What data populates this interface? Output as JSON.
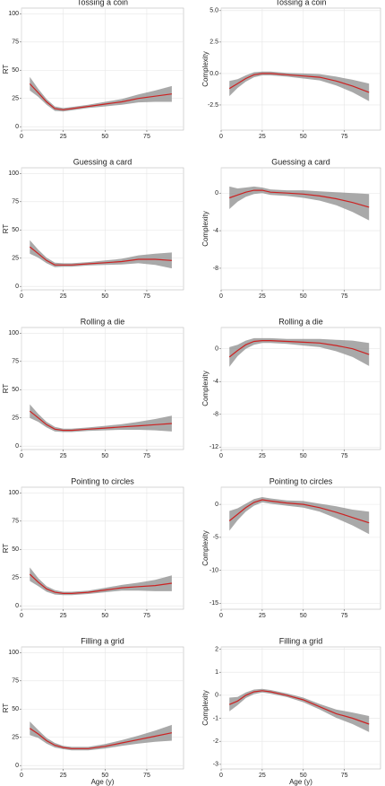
{
  "chart_data": [
    {
      "type": "line",
      "title": "Tossing a coin",
      "ylabel": "RT",
      "x": [
        5,
        10,
        15,
        20,
        25,
        30,
        40,
        50,
        60,
        70,
        80,
        90
      ],
      "xlim": [
        0,
        97
      ],
      "xticks": [
        0,
        25,
        50,
        75
      ],
      "ylim": [
        -3,
        105
      ],
      "yticks": [
        0,
        25,
        50,
        75,
        100
      ],
      "grid": true,
      "series": [
        {
          "color": "#cc2222",
          "band_color": "#8c8c8c",
          "values": [
            38,
            30,
            22,
            16,
            15,
            16,
            18,
            20,
            22,
            25,
            27,
            29
          ],
          "lower": [
            32,
            26.5,
            19.5,
            14,
            13.5,
            14.5,
            16.5,
            18,
            19.5,
            21.5,
            22,
            22
          ],
          "upper": [
            44,
            33.5,
            24.5,
            18,
            16.5,
            17.5,
            19.5,
            22,
            24.5,
            28.5,
            32,
            36
          ]
        }
      ]
    },
    {
      "type": "line",
      "title": "Tossing a coin",
      "ylabel": "Complexity",
      "x": [
        5,
        10,
        15,
        20,
        25,
        30,
        40,
        50,
        60,
        70,
        80,
        90
      ],
      "xlim": [
        0,
        97
      ],
      "xticks": [
        0,
        25,
        50,
        75
      ],
      "ylim": [
        -4.5,
        5.2
      ],
      "yticks": [
        -2.5,
        {
          "value": 0,
          "label": "0.0"
        },
        2.5,
        {
          "value": 5,
          "label": "5.0"
        }
      ],
      "grid": true,
      "series": [
        {
          "color": "#cc2222",
          "band_color": "#8c8c8c",
          "values": [
            -1.2,
            -0.8,
            -0.4,
            -0.1,
            0,
            0,
            -0.1,
            -0.2,
            -0.3,
            -0.6,
            -1.0,
            -1.5
          ],
          "lower": [
            -1.8,
            -1.15,
            -0.65,
            -0.3,
            -0.15,
            -0.15,
            -0.25,
            -0.4,
            -0.55,
            -0.95,
            -1.5,
            -2.2
          ],
          "upper": [
            -0.6,
            -0.45,
            -0.15,
            0.1,
            0.15,
            0.15,
            0.05,
            0,
            -0.05,
            -0.25,
            -0.5,
            -0.8
          ]
        }
      ]
    },
    {
      "type": "line",
      "title": "Guessing a card",
      "ylabel": "RT",
      "x": [
        5,
        10,
        15,
        20,
        25,
        30,
        40,
        50,
        60,
        70,
        80,
        90
      ],
      "xlim": [
        0,
        97
      ],
      "xticks": [
        0,
        25,
        50,
        75
      ],
      "ylim": [
        -3,
        105
      ],
      "yticks": [
        0,
        25,
        50,
        75,
        100
      ],
      "grid": true,
      "series": [
        {
          "color": "#cc2222",
          "band_color": "#8c8c8c",
          "values": [
            35,
            29,
            23,
            19,
            19,
            19,
            20,
            21,
            22,
            24,
            24,
            23
          ],
          "lower": [
            29,
            25.5,
            20.5,
            17,
            17.5,
            17.5,
            18.5,
            19,
            19.5,
            20.5,
            19,
            16
          ],
          "upper": [
            41,
            32.5,
            25.5,
            21,
            20.5,
            20.5,
            21.5,
            23,
            24.5,
            27.5,
            29,
            30
          ]
        }
      ]
    },
    {
      "type": "line",
      "title": "Guessing a card",
      "ylabel": "Complexity",
      "x": [
        5,
        10,
        15,
        20,
        25,
        30,
        40,
        50,
        60,
        70,
        80,
        90
      ],
      "xlim": [
        0,
        97
      ],
      "xticks": [
        0,
        25,
        50,
        75
      ],
      "ylim": [
        -10.3,
        2.7
      ],
      "yticks": [
        -8,
        -4,
        0
      ],
      "grid": true,
      "series": [
        {
          "color": "#cc2222",
          "band_color": "#8c8c8c",
          "values": [
            -0.5,
            -0.2,
            0.1,
            0.3,
            0.3,
            0.1,
            0,
            -0.1,
            -0.3,
            -0.6,
            -1.0,
            -1.5
          ],
          "lower": [
            -1.7,
            -0.9,
            -0.4,
            -0.1,
            0,
            -0.2,
            -0.3,
            -0.5,
            -0.8,
            -1.3,
            -2.0,
            -2.9
          ],
          "upper": [
            0.7,
            0.5,
            0.6,
            0.7,
            0.6,
            0.4,
            0.3,
            0.3,
            0.2,
            0.1,
            0,
            -0.1
          ]
        }
      ]
    },
    {
      "type": "line",
      "title": "Rolling a die",
      "ylabel": "RT",
      "x": [
        5,
        10,
        15,
        20,
        25,
        30,
        40,
        50,
        60,
        70,
        80,
        90
      ],
      "xlim": [
        0,
        97
      ],
      "xticks": [
        0,
        25,
        50,
        75
      ],
      "ylim": [
        -3,
        105
      ],
      "yticks": [
        0,
        25,
        50,
        75,
        100
      ],
      "grid": true,
      "series": [
        {
          "color": "#cc2222",
          "band_color": "#8c8c8c",
          "values": [
            31,
            25,
            19,
            15,
            14,
            14,
            15,
            16,
            17,
            18,
            19,
            20
          ],
          "lower": [
            25,
            21.5,
            16.5,
            13,
            12.5,
            12.5,
            13.5,
            14,
            14.5,
            14.5,
            14,
            13
          ],
          "upper": [
            37,
            28.5,
            21.5,
            17,
            15.5,
            15.5,
            16.5,
            18,
            19.5,
            21.5,
            24,
            27
          ]
        }
      ]
    },
    {
      "type": "line",
      "title": "Rolling a die",
      "ylabel": "Complexity",
      "x": [
        5,
        10,
        15,
        20,
        25,
        30,
        40,
        50,
        60,
        70,
        80,
        90
      ],
      "xlim": [
        0,
        97
      ],
      "xticks": [
        0,
        25,
        50,
        75
      ],
      "ylim": [
        -12.3,
        2.6
      ],
      "yticks": [
        -12,
        -8,
        -4,
        0
      ],
      "grid": true,
      "series": [
        {
          "color": "#cc2222",
          "band_color": "#8c8c8c",
          "values": [
            -1,
            -0.2,
            0.5,
            0.9,
            1.0,
            1.0,
            0.9,
            0.8,
            0.7,
            0.4,
            0,
            -0.7
          ],
          "lower": [
            -2.2,
            -0.9,
            0,
            0.5,
            0.7,
            0.7,
            0.6,
            0.4,
            0.2,
            -0.3,
            -1.0,
            -2.1
          ],
          "upper": [
            0.2,
            0.5,
            1.0,
            1.3,
            1.3,
            1.3,
            1.2,
            1.2,
            1.2,
            1.1,
            1.0,
            0.7
          ]
        }
      ]
    },
    {
      "type": "line",
      "title": "Pointing to circles",
      "ylabel": "RT",
      "x": [
        5,
        10,
        15,
        20,
        25,
        30,
        40,
        50,
        60,
        70,
        80,
        90
      ],
      "xlim": [
        0,
        97
      ],
      "xticks": [
        0,
        25,
        50,
        75
      ],
      "ylim": [
        -3,
        105
      ],
      "yticks": [
        0,
        25,
        50,
        75,
        100
      ],
      "grid": true,
      "series": [
        {
          "color": "#cc2222",
          "band_color": "#8c8c8c",
          "values": [
            28,
            21,
            15,
            12,
            11,
            11,
            12,
            14,
            16,
            17,
            18,
            20
          ],
          "lower": [
            22,
            17.5,
            12.5,
            10,
            9.5,
            9.5,
            10.5,
            12,
            13.5,
            13.5,
            13,
            13
          ],
          "upper": [
            34,
            24.5,
            17.5,
            14,
            12.5,
            12.5,
            13.5,
            16,
            18.5,
            20.5,
            23,
            27
          ]
        }
      ]
    },
    {
      "type": "line",
      "title": "Pointing to circles",
      "ylabel": "Complexity",
      "x": [
        5,
        10,
        15,
        20,
        25,
        30,
        40,
        50,
        60,
        70,
        80,
        90
      ],
      "xlim": [
        0,
        97
      ],
      "xticks": [
        0,
        25,
        50,
        75
      ],
      "ylim": [
        -15.9,
        2.6
      ],
      "yticks": [
        -15,
        -10,
        -5,
        0
      ],
      "grid": true,
      "series": [
        {
          "color": "#cc2222",
          "band_color": "#8c8c8c",
          "values": [
            -2.5,
            -1.5,
            -0.5,
            0.3,
            0.7,
            0.5,
            0.2,
            0,
            -0.5,
            -1.2,
            -2,
            -2.8
          ],
          "lower": [
            -4,
            -2.4,
            -1.1,
            -0.2,
            0.3,
            0.1,
            -0.2,
            -0.5,
            -1.1,
            -2.1,
            -3.2,
            -4.5
          ],
          "upper": [
            -1,
            -0.6,
            0.1,
            0.8,
            1.1,
            0.9,
            0.6,
            0.5,
            0.1,
            -0.3,
            -0.8,
            -1.1
          ]
        }
      ]
    },
    {
      "type": "line",
      "title": "Filling a grid",
      "ylabel": "RT",
      "xlabel": "Age (y)",
      "x": [
        5,
        10,
        15,
        20,
        25,
        30,
        40,
        50,
        60,
        70,
        80,
        90
      ],
      "xlim": [
        0,
        97
      ],
      "xticks": [
        0,
        25,
        50,
        75
      ],
      "ylim": [
        -3,
        105
      ],
      "yticks": [
        0,
        25,
        50,
        75,
        100
      ],
      "grid": true,
      "series": [
        {
          "color": "#cc2222",
          "band_color": "#8c8c8c",
          "values": [
            33,
            28,
            22,
            18,
            16,
            15,
            15,
            17,
            20,
            23,
            26,
            29
          ],
          "lower": [
            27,
            24.5,
            19.5,
            16,
            14.5,
            13.5,
            13.5,
            15,
            17.5,
            19.5,
            21,
            22
          ],
          "upper": [
            39,
            31.5,
            24.5,
            20,
            17.5,
            16.5,
            16.5,
            19,
            22.5,
            26.5,
            31,
            36
          ]
        }
      ]
    },
    {
      "type": "line",
      "title": "Filling a grid",
      "ylabel": "Complexity",
      "xlabel": "Age (y)",
      "x": [
        5,
        10,
        15,
        20,
        25,
        30,
        40,
        50,
        60,
        70,
        80,
        90
      ],
      "xlim": [
        0,
        97
      ],
      "xticks": [
        0,
        25,
        50,
        75
      ],
      "ylim": [
        -3.2,
        2.1
      ],
      "yticks": [
        -3,
        -2,
        -1,
        0,
        1,
        2
      ],
      "grid": true,
      "series": [
        {
          "color": "#cc2222",
          "band_color": "#8c8c8c",
          "values": [
            -0.4,
            -0.25,
            0,
            0.15,
            0.2,
            0.15,
            0,
            -0.2,
            -0.5,
            -0.8,
            -1.0,
            -1.25
          ],
          "lower": [
            -0.7,
            -0.43,
            -0.12,
            0.05,
            0.12,
            0.07,
            -0.08,
            -0.3,
            -0.62,
            -0.98,
            -1.25,
            -1.6
          ],
          "upper": [
            -0.1,
            -0.07,
            0.12,
            0.25,
            0.28,
            0.23,
            0.08,
            -0.1,
            -0.38,
            -0.62,
            -0.75,
            -0.9
          ]
        }
      ]
    }
  ]
}
